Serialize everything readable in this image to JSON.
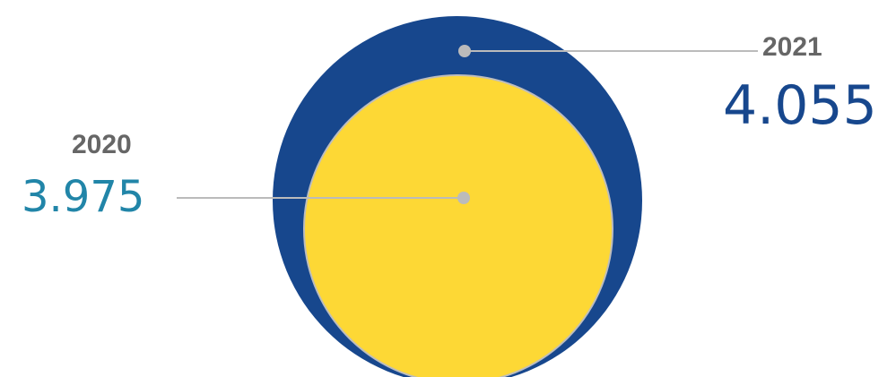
{
  "chart_data": {
    "type": "bubble",
    "title": "",
    "series": [
      {
        "label": "2021",
        "value": "4.055",
        "numeric": 4055,
        "color": "#17478d",
        "label_color": "#17478d"
      },
      {
        "label": "2020",
        "value": "3.975",
        "numeric": 3975,
        "color": "#fdd835",
        "label_color": "#2185a8"
      }
    ],
    "leader_line_color": "#bbbbbb",
    "legend": "none",
    "grid": false
  }
}
